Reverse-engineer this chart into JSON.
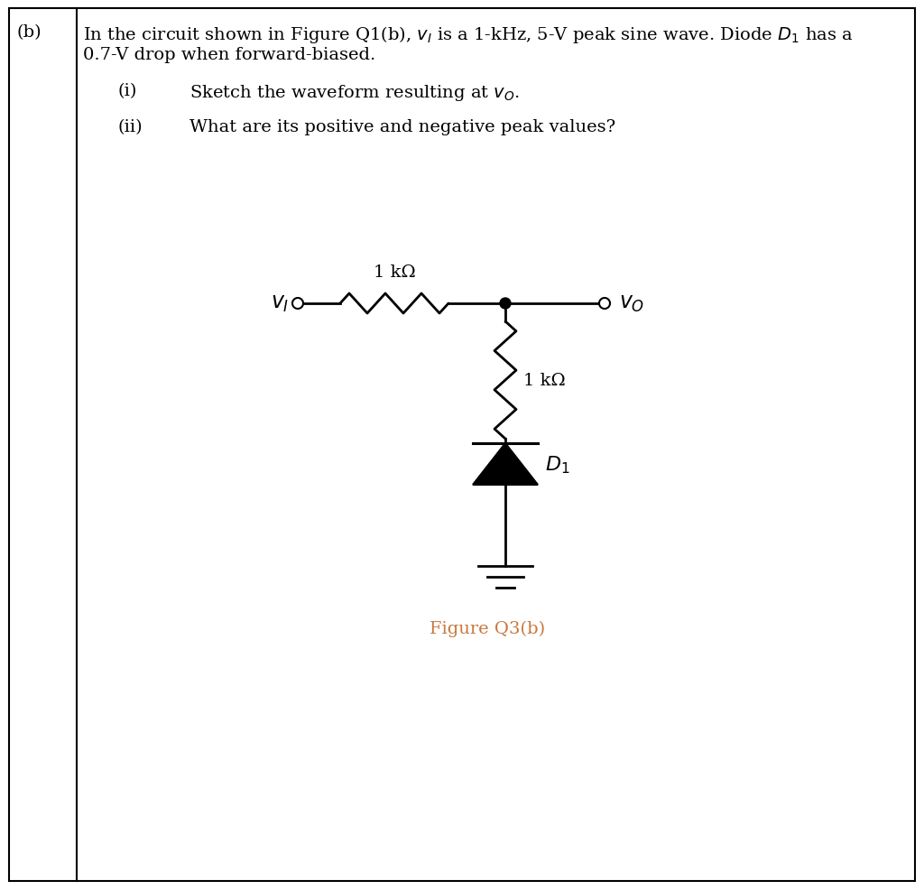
{
  "background_color": "#ffffff",
  "border_color": "#000000",
  "text_color": "#000000",
  "figure_caption_color": "#c8783c",
  "R1_label": "1 kΩ",
  "R2_label": "1 kΩ",
  "figure_caption": "Figure Q3(b)",
  "font_size_main": 14,
  "font_size_labels": 14,
  "font_size_circuit": 15,
  "font_size_caption": 14
}
